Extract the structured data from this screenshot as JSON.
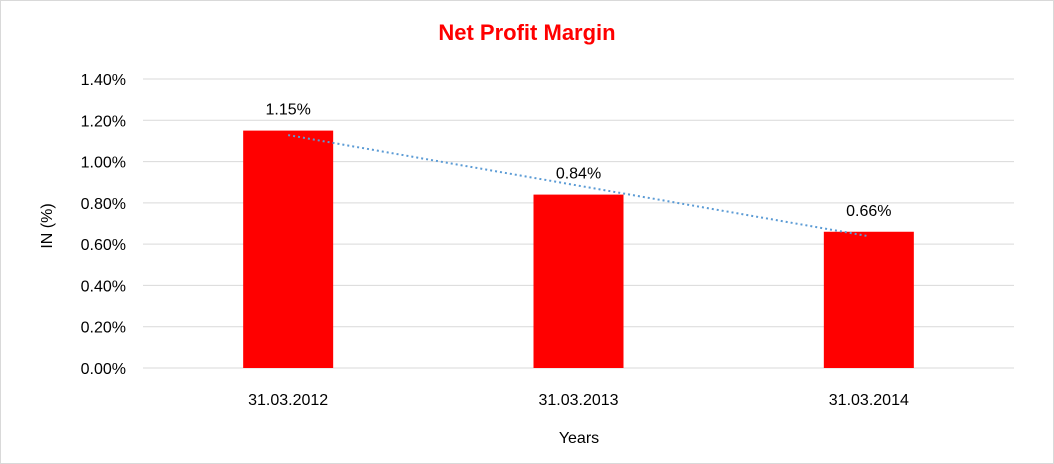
{
  "chart_data": {
    "type": "bar",
    "title": "Net Profit Margin",
    "xlabel": "Years",
    "ylabel": "IN (%)",
    "categories": [
      "31.03.2012",
      "31.03.2013",
      "31.03.2014"
    ],
    "values": [
      1.15,
      0.84,
      0.66
    ],
    "value_labels": [
      "1.15%",
      "0.84%",
      "0.66%"
    ],
    "ylim": [
      0,
      1.4
    ],
    "y_ticks": [
      0,
      0.2,
      0.4,
      0.6,
      0.8,
      1.0,
      1.2,
      1.4
    ],
    "y_tick_labels": [
      "0.00%",
      "0.20%",
      "0.40%",
      "0.60%",
      "0.80%",
      "1.00%",
      "1.20%",
      "1.40%"
    ],
    "grid": true,
    "legend": "none",
    "trendline": "linear",
    "colors": {
      "title": "#ff0000",
      "bar": "#ff0000",
      "trendline": "#5b9bd5",
      "grid": "#d9d9d9"
    }
  }
}
